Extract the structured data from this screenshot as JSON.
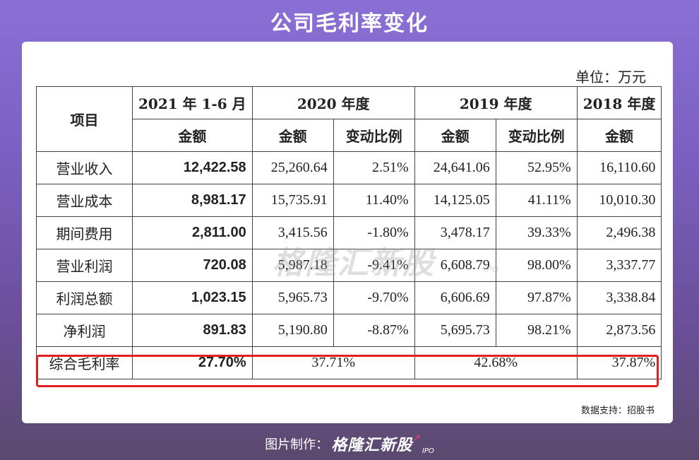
{
  "title": "公司毛利率变化",
  "unit": "单位：万元",
  "header": {
    "item": "项目",
    "periods": [
      "2021 年 1-6 月",
      "2020 年度",
      "2019 年度",
      "2018 年度"
    ],
    "amount": "金额",
    "change": "变动比例"
  },
  "rows": [
    {
      "label": "营业收入",
      "v2021": "12,422.58",
      "v2020": "25,260.64",
      "c2020": "2.51%",
      "v2019": "24,641.06",
      "c2019": "52.95%",
      "v2018": "16,110.60"
    },
    {
      "label": "营业成本",
      "v2021": "8,981.17",
      "v2020": "15,735.91",
      "c2020": "11.40%",
      "v2019": "14,125.05",
      "c2019": "41.11%",
      "v2018": "10,010.30"
    },
    {
      "label": "期间费用",
      "v2021": "2,811.00",
      "v2020": "3,415.56",
      "c2020": "-1.80%",
      "v2019": "3,478.17",
      "c2019": "39.33%",
      "v2018": "2,496.38"
    },
    {
      "label": "营业利润",
      "v2021": "720.08",
      "v2020": "5,987.18",
      "c2020": "-9.41%",
      "v2019": "6,608.79",
      "c2019": "98.00%",
      "v2018": "3,337.77"
    },
    {
      "label": "利润总额",
      "v2021": "1,023.15",
      "v2020": "5,965.73",
      "c2020": "-9.70%",
      "v2019": "6,606.69",
      "c2019": "97.87%",
      "v2018": "3,338.84"
    },
    {
      "label": "净利润",
      "v2021": "891.83",
      "v2020": "5,190.80",
      "c2020": "-8.87%",
      "v2019": "5,695.73",
      "c2019": "98.21%",
      "v2018": "2,873.56"
    }
  ],
  "margin_row": {
    "label": "综合毛利率",
    "v2021": "27.70%",
    "v2020": "37.71%",
    "v2019": "42.68%",
    "v2018": "37.87%"
  },
  "watermark": "格隆汇新股",
  "watermark_sub": "IPO",
  "source": "数据支持：招股书",
  "footer": {
    "credit": "图片制作：",
    "brand": "格隆汇新股",
    "brand_sub": "IPO"
  },
  "colors": {
    "highlight": "#e02020",
    "accent_arrow": "#ff3b6b"
  }
}
